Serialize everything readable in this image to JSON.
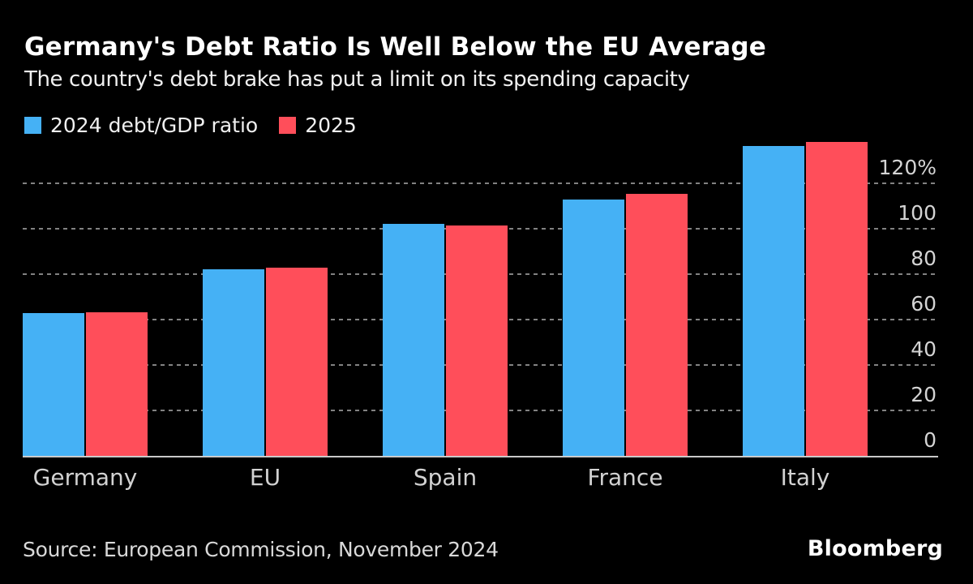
{
  "chart": {
    "title": "Germany's Debt Ratio Is Well Below the EU Average",
    "subtitle": "The country's debt brake has put a limit on its spending capacity"
  },
  "chart_data": {
    "type": "bar",
    "categories": [
      "Germany",
      "EU",
      "Spain",
      "France",
      "Italy"
    ],
    "series": [
      {
        "name": "2024 debt/GDP ratio",
        "color": "#45b1f5",
        "values": [
          63.0,
          82.1,
          102.3,
          112.7,
          136.6
        ]
      },
      {
        "name": "2025",
        "color": "#ff4e5a",
        "values": [
          63.2,
          83.0,
          101.3,
          115.3,
          138.2
        ]
      }
    ],
    "title": "Germany's Debt Ratio Is Well Below the EU Average",
    "xlabel": "",
    "ylabel": "",
    "ylim": [
      0,
      140
    ],
    "y_ticks": [
      0,
      20,
      40,
      60,
      80,
      100,
      120
    ],
    "y_tick_labels": [
      "0",
      "20",
      "40",
      "60",
      "80",
      "100",
      "120%"
    ],
    "axis_side": "right",
    "grid": "dotted-horizontal",
    "legend_position": "top-left",
    "background_color": "#000000",
    "gridline_color": "#828282",
    "axis_line_color": "#c9c9c9",
    "tick_label_color": "#d4d4d4"
  },
  "source": {
    "label": "Source: European Commission, November 2024"
  },
  "branding": {
    "logo_text": "Bloomberg"
  }
}
